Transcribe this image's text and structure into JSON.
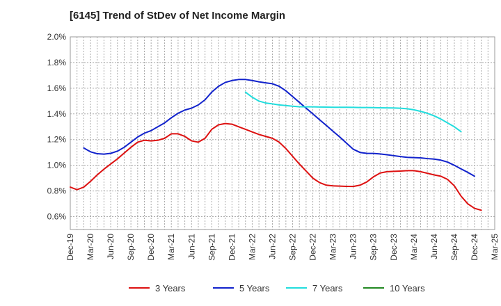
{
  "chart_data": {
    "type": "line",
    "title": "[6145]  Trend of StDev of Net Income Margin",
    "xlabel": "",
    "ylabel": "",
    "ylim": [
      0.5,
      2.0
    ],
    "y_ticks": [
      "0.6%",
      "0.8%",
      "1.0%",
      "1.2%",
      "1.4%",
      "1.6%",
      "1.8%",
      "2.0%"
    ],
    "y_tick_values": [
      0.6,
      0.8,
      1.0,
      1.2,
      1.4,
      1.6,
      1.8,
      2.0
    ],
    "x_ticks": [
      "Dec-19",
      "Mar-20",
      "Jun-20",
      "Sep-20",
      "Dec-20",
      "Mar-21",
      "Jun-21",
      "Sep-21",
      "Dec-21",
      "Mar-22",
      "Jun-22",
      "Sep-22",
      "Dec-22",
      "Mar-23",
      "Jun-23",
      "Sep-23",
      "Dec-23",
      "Mar-24",
      "Jun-24",
      "Sep-24",
      "Dec-24",
      "Mar-25"
    ],
    "grid": true,
    "legend_position": "bottom",
    "series": [
      {
        "name": "3 Years",
        "color": "#dd1111",
        "start_index": 0,
        "values": [
          0.83,
          0.81,
          0.83,
          0.875,
          0.925,
          0.97,
          1.01,
          1.05,
          1.095,
          1.14,
          1.18,
          1.195,
          1.19,
          1.195,
          1.21,
          1.245,
          1.245,
          1.225,
          1.19,
          1.18,
          1.21,
          1.28,
          1.315,
          1.325,
          1.32,
          1.3,
          1.28,
          1.26,
          1.24,
          1.225,
          1.21,
          1.18,
          1.13,
          1.07,
          1.01,
          0.955,
          0.9,
          0.865,
          0.845,
          0.84,
          0.838,
          0.836,
          0.835,
          0.845,
          0.87,
          0.91,
          0.94,
          0.95,
          0.953,
          0.955,
          0.958,
          0.958,
          0.95,
          0.938,
          0.925,
          0.915,
          0.89,
          0.84,
          0.76,
          0.7,
          0.665,
          0.65
        ]
      },
      {
        "name": "5 Years",
        "color": "#1122cc",
        "start_index": 2,
        "values": [
          1.135,
          1.105,
          1.09,
          1.087,
          1.093,
          1.11,
          1.14,
          1.18,
          1.22,
          1.25,
          1.27,
          1.3,
          1.33,
          1.37,
          1.405,
          1.43,
          1.445,
          1.47,
          1.51,
          1.57,
          1.615,
          1.645,
          1.66,
          1.668,
          1.668,
          1.66,
          1.65,
          1.642,
          1.635,
          1.615,
          1.58,
          1.535,
          1.49,
          1.445,
          1.4,
          1.355,
          1.31,
          1.265,
          1.22,
          1.172,
          1.125,
          1.1,
          1.093,
          1.092,
          1.088,
          1.082,
          1.075,
          1.068,
          1.062,
          1.06,
          1.058,
          1.052,
          1.048,
          1.04,
          1.025,
          1.0,
          0.972,
          0.945,
          0.915
        ]
      },
      {
        "name": "7 Years",
        "color": "#22dddd",
        "start_index": 26,
        "values": [
          1.57,
          1.53,
          1.5,
          1.485,
          1.478,
          1.47,
          1.465,
          1.46,
          1.456,
          1.455,
          1.455,
          1.454,
          1.453,
          1.452,
          1.452,
          1.452,
          1.451,
          1.45,
          1.45,
          1.449,
          1.448,
          1.447,
          1.446,
          1.444,
          1.44,
          1.432,
          1.42,
          1.405,
          1.385,
          1.36,
          1.33,
          1.3,
          1.262
        ]
      },
      {
        "name": "10 Years",
        "color": "#228822",
        "start_index": 0,
        "values": []
      }
    ]
  }
}
